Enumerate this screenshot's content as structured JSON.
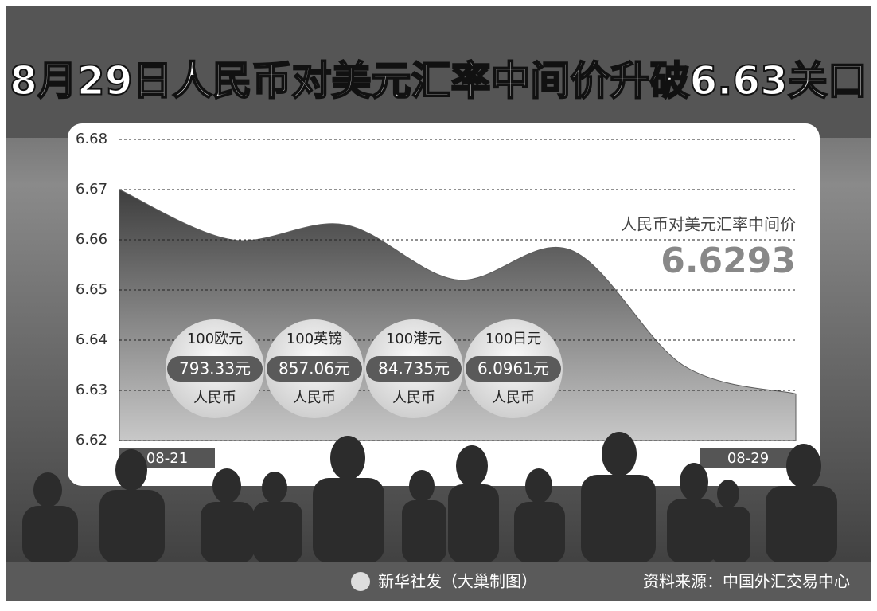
{
  "chart_data": {
    "type": "area",
    "title": "8月29日人民币对美元汇率中间价升破6.63关口",
    "categories": [
      "08-21",
      null,
      null,
      null,
      null,
      null,
      "08-29"
    ],
    "series": [
      {
        "name": "人民币对美元汇率中间价",
        "color": "#5c5c5c",
        "values": [
          6.67,
          6.66,
          6.663,
          6.652,
          6.658,
          6.635,
          6.6293
        ]
      }
    ],
    "ylim": [
      6.62,
      6.68
    ],
    "yticks": [
      6.62,
      6.63,
      6.64,
      6.65,
      6.66,
      6.67,
      6.68
    ],
    "grid": true,
    "conversions": [
      {
        "unit": "100欧元",
        "amount": "793.33元",
        "currency": "人民币"
      },
      {
        "unit": "100英镑",
        "amount": "857.06元",
        "currency": "人民币"
      },
      {
        "unit": "100港元",
        "amount": "84.735元",
        "currency": "人民币"
      },
      {
        "unit": "100日元",
        "amount": "6.0961元",
        "currency": "人民币"
      }
    ],
    "credit": "新华社发（大巢制图）",
    "source": "资料来源：中国外汇交易中心"
  }
}
